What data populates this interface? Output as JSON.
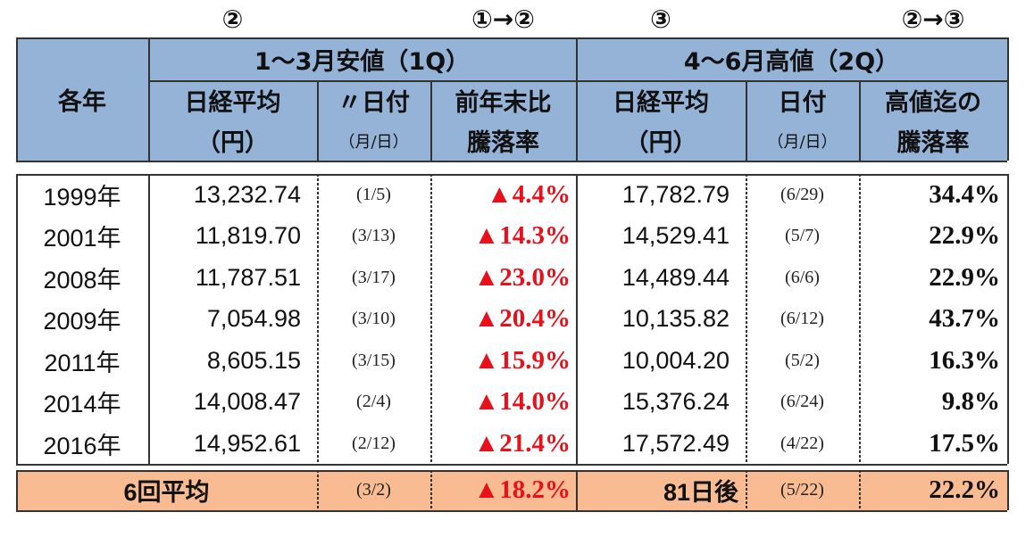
{
  "markers": [
    "②",
    "①→②",
    "③",
    "②→③"
  ],
  "header": {
    "year": "各年",
    "group_1q": "1～3月安値（1Q）",
    "group_2q": "4～6月高値（2Q）",
    "columns": [
      [
        "日経平均",
        "（円）"
      ],
      [
        "〃日付",
        "（月/日）"
      ],
      [
        "前年末比",
        "騰落率"
      ],
      [
        "日経平均",
        "（円）"
      ],
      [
        "日付",
        "（月/日）"
      ],
      [
        "高値迄の",
        "騰落率"
      ]
    ]
  },
  "rows": [
    [
      "1999年",
      "13,232.74",
      "(1/5)",
      "▲4.4%",
      "17,782.79",
      "(6/29)",
      "34.4%"
    ],
    [
      "2001年",
      "11,819.70",
      "(3/13)",
      "▲14.3%",
      "14,529.41",
      "(5/7)",
      "22.9%"
    ],
    [
      "2008年",
      "11,787.51",
      "(3/17)",
      "▲23.0%",
      "14,489.44",
      "(6/6)",
      "22.9%"
    ],
    [
      "2009年",
      "7,054.98",
      "(3/10)",
      "▲20.4%",
      "10,135.82",
      "(6/12)",
      "43.7%"
    ],
    [
      "2011年",
      "8,605.15",
      "(3/15)",
      "▲15.9%",
      "10,004.20",
      "(5/2)",
      "16.3%"
    ],
    [
      "2014年",
      "14,008.47",
      "(2/4)",
      "▲14.0%",
      "15,376.24",
      "(6/24)",
      "9.8%"
    ],
    [
      "2016年",
      "14,952.61",
      "(2/12)",
      "▲21.4%",
      "17,572.49",
      "(4/22)",
      "17.5%"
    ]
  ],
  "average": [
    "6回平均",
    "(3/2)",
    "▲18.2%",
    "81日後",
    "(5/22)",
    "22.2%"
  ]
}
